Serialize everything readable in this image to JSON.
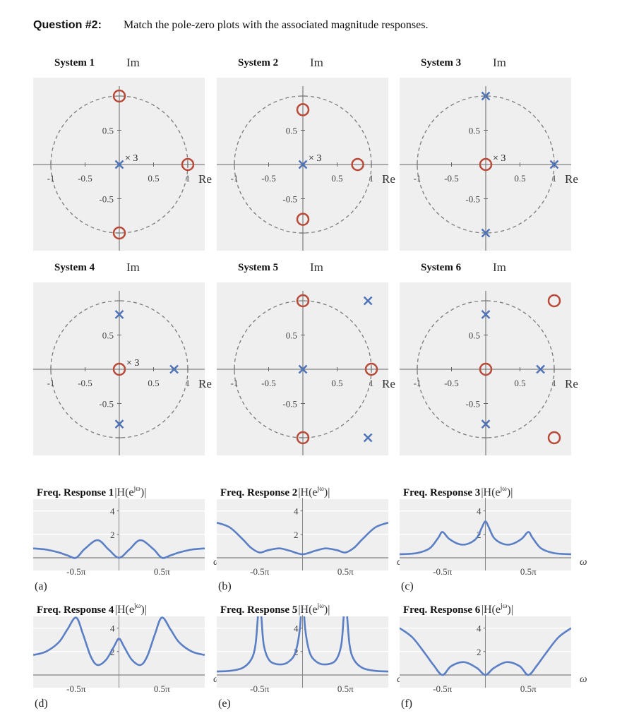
{
  "question": {
    "number": "Question #2:",
    "text": "Match the pole-zero plots with the associated magnitude responses."
  },
  "colors": {
    "panel_background": "#efefef",
    "zero_marker": "#b84a3a",
    "pole_marker": "#4f73b8",
    "curve": "#5b7fc4",
    "unit_circle": "#7a7a7a"
  },
  "pz_axes": {
    "im_label": "Im",
    "re_label": "Re",
    "x_ticks": [
      "-1",
      "-0.5",
      "0.5",
      "1"
    ],
    "y_ticks": [
      "0.5",
      "-0.5"
    ],
    "unit_circle": "dashed"
  },
  "systems": [
    {
      "label": "System 1",
      "poles": [
        {
          "re": 0,
          "im": 0,
          "multiplicity": 3,
          "label": "× 3"
        }
      ],
      "zeros": [
        {
          "re": 0,
          "im": 1
        },
        {
          "re": 0,
          "im": -1
        },
        {
          "re": 1,
          "im": 0
        }
      ]
    },
    {
      "label": "System 2",
      "poles": [
        {
          "re": 0,
          "im": 0,
          "multiplicity": 3,
          "label": "× 3"
        }
      ],
      "zeros": [
        {
          "re": 0,
          "im": 0.8
        },
        {
          "re": 0,
          "im": -0.8
        },
        {
          "re": 0.8,
          "im": 0
        }
      ]
    },
    {
      "label": "System 3",
      "poles": [
        {
          "re": 0,
          "im": 1
        },
        {
          "re": 0,
          "im": -1
        },
        {
          "re": 1,
          "im": 0
        }
      ],
      "zeros": [
        {
          "re": 0,
          "im": 0,
          "multiplicity": 3,
          "label": "× 3"
        }
      ]
    },
    {
      "label": "System 4",
      "poles": [
        {
          "re": 0,
          "im": 0.8
        },
        {
          "re": 0,
          "im": -0.8
        },
        {
          "re": 0.8,
          "im": 0
        }
      ],
      "zeros": [
        {
          "re": 0,
          "im": 0,
          "multiplicity": 3,
          "label": "× 3"
        }
      ]
    },
    {
      "label": "System 5",
      "poles": [
        {
          "re": 0,
          "im": 0
        },
        {
          "re": 0.95,
          "im": 1.0
        },
        {
          "re": 0.95,
          "im": -1.0
        }
      ],
      "zeros": [
        {
          "re": 0,
          "im": 1
        },
        {
          "re": 0,
          "im": -1
        },
        {
          "re": 1,
          "im": 0
        }
      ]
    },
    {
      "label": "System 6",
      "poles": [
        {
          "re": 0,
          "im": 0.8
        },
        {
          "re": 0,
          "im": -0.8
        },
        {
          "re": 0.8,
          "im": 0
        }
      ],
      "zeros": [
        {
          "re": 0,
          "im": 0
        },
        {
          "re": 1.0,
          "im": 1.0
        },
        {
          "re": 1.0,
          "im": -1.0
        }
      ]
    }
  ],
  "chart_data": [
    {
      "type": "line",
      "title": "Freq. Response 1",
      "ylabel_pre": "|H(e",
      "ylabel_sup": "jω",
      "ylabel_post": ")|",
      "xlabel": "ω",
      "sublabel": "(a)",
      "x_ticks": [
        "-0.5π",
        "0.5π"
      ],
      "y_ticks": [
        "2",
        "4"
      ],
      "xlim_over_pi": [
        -1,
        1
      ],
      "ylim": [
        0,
        5
      ],
      "grid": "horizontal",
      "omega_over_pi": [
        -1,
        -0.85,
        -0.7,
        -0.6,
        -0.5,
        -0.4,
        -0.25,
        -0.12,
        0,
        0.12,
        0.25,
        0.4,
        0.5,
        0.6,
        0.7,
        0.85,
        1
      ],
      "magnitude": [
        0.8,
        0.7,
        0.45,
        0.2,
        0,
        0.75,
        1.5,
        0.7,
        0,
        0.7,
        1.5,
        0.75,
        0,
        0.2,
        0.45,
        0.7,
        0.8
      ]
    },
    {
      "type": "line",
      "title": "Freq. Response 2",
      "ylabel_pre": "|H(e",
      "ylabel_sup": "jω",
      "ylabel_post": ")|",
      "xlabel": "ω",
      "sublabel": "(b)",
      "x_ticks": [
        "-0.5π",
        "0.5π"
      ],
      "y_ticks": [
        "2",
        "4"
      ],
      "xlim_over_pi": [
        -1,
        1
      ],
      "ylim": [
        0,
        5
      ],
      "grid": "horizontal",
      "omega_over_pi": [
        -1,
        -0.85,
        -0.7,
        -0.6,
        -0.5,
        -0.4,
        -0.27,
        -0.15,
        0,
        0.15,
        0.27,
        0.4,
        0.5,
        0.6,
        0.7,
        0.85,
        1
      ],
      "magnitude": [
        3.0,
        2.6,
        1.6,
        0.85,
        0.45,
        0.65,
        0.8,
        0.6,
        0.3,
        0.6,
        0.8,
        0.65,
        0.45,
        0.85,
        1.6,
        2.6,
        3.0
      ]
    },
    {
      "type": "line",
      "title": "Freq. Response 3",
      "ylabel_pre": "|H(e",
      "ylabel_sup": "jω",
      "ylabel_post": ")|",
      "xlabel": "ω",
      "sublabel": "(c)",
      "x_ticks": [
        "-0.5π",
        "0.5π"
      ],
      "y_ticks": [
        "2",
        "4"
      ],
      "xlim_over_pi": [
        -1,
        1
      ],
      "ylim": [
        0,
        5
      ],
      "grid": "horizontal",
      "omega_over_pi": [
        -1,
        -0.8,
        -0.65,
        -0.55,
        -0.5,
        -0.42,
        -0.3,
        -0.2,
        -0.1,
        -0.04,
        0,
        0.04,
        0.1,
        0.2,
        0.3,
        0.42,
        0.5,
        0.55,
        0.65,
        0.8,
        1
      ],
      "magnitude": [
        0.3,
        0.4,
        0.8,
        1.7,
        2.2,
        1.6,
        1.15,
        1.2,
        1.7,
        2.6,
        3.1,
        2.6,
        1.7,
        1.2,
        1.15,
        1.6,
        2.2,
        1.7,
        0.8,
        0.4,
        0.3
      ]
    },
    {
      "type": "line",
      "title": "Freq. Response 4",
      "ylabel_pre": "|H(e",
      "ylabel_sup": "jω",
      "ylabel_post": ")|",
      "xlabel": "ω",
      "sublabel": "(d)",
      "x_ticks": [
        "-0.5π",
        "0.5π"
      ],
      "y_ticks": [
        "2",
        "4"
      ],
      "xlim_over_pi": [
        -1,
        1
      ],
      "ylim": [
        0,
        5
      ],
      "grid": "horizontal",
      "omega_over_pi": [
        -1,
        -0.85,
        -0.7,
        -0.6,
        -0.5,
        -0.42,
        -0.33,
        -0.25,
        -0.15,
        -0.06,
        0,
        0.06,
        0.15,
        0.25,
        0.33,
        0.42,
        0.5,
        0.6,
        0.7,
        0.85,
        1
      ],
      "magnitude": [
        1.7,
        2.0,
        2.8,
        3.9,
        4.9,
        3.5,
        1.6,
        0.85,
        1.3,
        2.4,
        3.1,
        2.4,
        1.3,
        0.85,
        1.6,
        3.5,
        4.9,
        3.9,
        2.8,
        2.0,
        1.7
      ]
    },
    {
      "type": "line",
      "title": "Freq. Response 5",
      "ylabel_pre": "|H(e",
      "ylabel_sup": "jω",
      "ylabel_post": ")|",
      "xlabel": "ω",
      "sublabel": "(e)",
      "x_ticks": [
        "-0.5π",
        "0.5π"
      ],
      "y_ticks": [
        "2",
        "4"
      ],
      "xlim_over_pi": [
        -1,
        1
      ],
      "ylim": [
        0,
        5
      ],
      "grid": "horizontal",
      "omega_over_pi": [
        -1,
        -0.85,
        -0.7,
        -0.6,
        -0.55,
        -0.52,
        -0.5,
        -0.48,
        -0.45,
        -0.38,
        -0.25,
        -0.15,
        -0.08,
        -0.03,
        0,
        0.03,
        0.08,
        0.15,
        0.25,
        0.38,
        0.45,
        0.48,
        0.5,
        0.52,
        0.55,
        0.6,
        0.7,
        0.85,
        1
      ],
      "magnitude": [
        0.3,
        0.35,
        0.6,
        1.3,
        2.5,
        5,
        7,
        5,
        2.5,
        1.2,
        0.9,
        1.2,
        2.0,
        4.0,
        7,
        4.0,
        2.0,
        1.2,
        0.9,
        1.2,
        2.5,
        5,
        7,
        5,
        2.5,
        1.3,
        0.6,
        0.35,
        0.3
      ]
    },
    {
      "type": "line",
      "title": "Freq. Response 6",
      "ylabel_pre": "|H(e",
      "ylabel_sup": "jω",
      "ylabel_post": ")|",
      "xlabel": "ω",
      "sublabel": "(f)",
      "x_ticks": [
        "-0.5π",
        "0.5π"
      ],
      "y_ticks": [
        "2",
        "4"
      ],
      "xlim_over_pi": [
        -1,
        1
      ],
      "ylim": [
        0,
        5
      ],
      "grid": "horizontal",
      "omega_over_pi": [
        -1,
        -0.85,
        -0.7,
        -0.6,
        -0.5,
        -0.4,
        -0.25,
        -0.1,
        0,
        0.1,
        0.25,
        0.4,
        0.5,
        0.6,
        0.7,
        0.85,
        1
      ],
      "magnitude": [
        4.0,
        3.2,
        1.8,
        0.8,
        0,
        0.75,
        1.1,
        0.6,
        0,
        0.6,
        1.1,
        0.75,
        0,
        0.8,
        1.8,
        3.2,
        4.0
      ]
    }
  ]
}
